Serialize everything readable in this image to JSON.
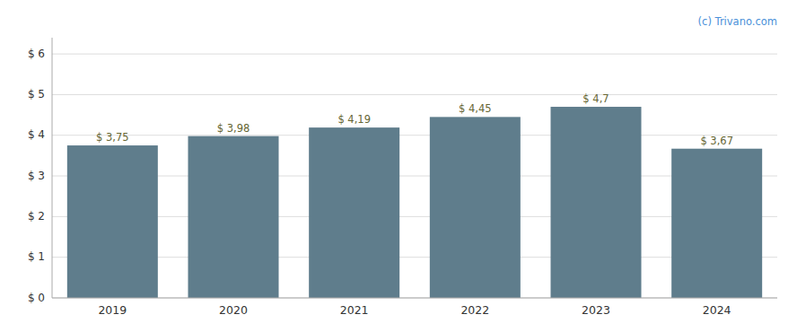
{
  "chart_data": {
    "type": "bar",
    "categories": [
      "2019",
      "2020",
      "2021",
      "2022",
      "2023",
      "2024"
    ],
    "values": [
      3.75,
      3.98,
      4.19,
      4.45,
      4.7,
      3.67
    ],
    "value_labels": [
      "$ 3,75",
      "$ 3,98",
      "$ 4,19",
      "$ 4,45",
      "$ 4,7",
      "$ 3,67"
    ],
    "data_labels": true,
    "color": "#5f7d8c",
    "ylim": [
      0,
      6.4
    ],
    "yticks": [
      {
        "value": 0,
        "label": "$ 0"
      },
      {
        "value": 1,
        "label": "$ 1"
      },
      {
        "value": 2,
        "label": "$ 2"
      },
      {
        "value": 3,
        "label": "$ 3"
      },
      {
        "value": 4,
        "label": "$ 4"
      },
      {
        "value": 5,
        "label": "$ 5"
      },
      {
        "value": 6,
        "label": "$ 6"
      }
    ],
    "grid": true,
    "annotations": [
      "(c) Trivano.com"
    ]
  }
}
